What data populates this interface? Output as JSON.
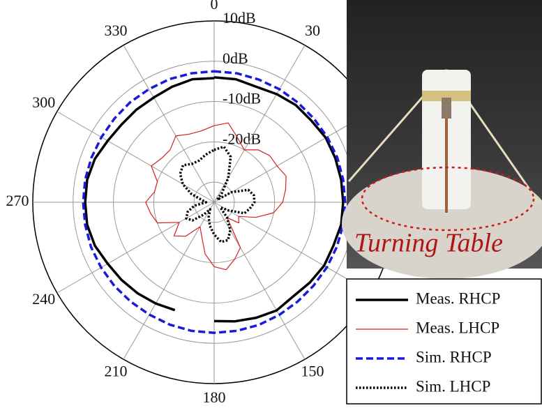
{
  "chart_data": {
    "type": "polar",
    "theta": [
      0,
      10,
      20,
      30,
      40,
      50,
      60,
      70,
      80,
      90,
      100,
      110,
      120,
      130,
      140,
      150,
      160,
      170,
      180,
      190,
      200,
      210,
      220,
      230,
      240,
      250,
      260,
      270,
      280,
      290,
      300,
      310,
      320,
      330,
      340,
      350,
      360
    ],
    "rlim": [
      -35,
      10
    ],
    "rticks": [
      {
        "value": 10,
        "label": "10dB"
      },
      {
        "value": 0,
        "label": "0dB"
      },
      {
        "value": -10,
        "label": "-10dB"
      },
      {
        "value": -20,
        "label": "-20dB"
      },
      {
        "value": -30,
        "label": ""
      }
    ],
    "thetaticks": [
      0,
      30,
      60,
      90,
      120,
      150,
      180,
      210,
      240,
      270,
      300,
      330
    ],
    "thetatick_labels": [
      "0",
      "30",
      null,
      null,
      null,
      "150",
      "180",
      "210",
      "240",
      "270",
      "300",
      "330"
    ],
    "annotation": "Turning Table",
    "series": [
      {
        "name": "Meas. RHCP",
        "color": "#000000",
        "dash": "solid",
        "width": 3.5,
        "values": [
          -4,
          -4,
          -4.5,
          -4,
          -3.5,
          -3.5,
          -3,
          -3,
          -3,
          -3,
          -3,
          -3.5,
          -3.5,
          -4,
          -4.5,
          -4,
          -4.5,
          -5,
          -5.5,
          null,
          -6.5,
          -6,
          -5.5,
          -5,
          -4.5,
          -3.5,
          -3,
          -3,
          -3,
          -3.5,
          -4.5,
          -5,
          -5,
          -5,
          -4.5,
          -4,
          -4.2
        ]
      },
      {
        "name": "Meas. LHCP",
        "color": "#d42020",
        "dash": "solid",
        "width": 1.2,
        "values": [
          -16,
          -15,
          -18,
          -20,
          -18,
          -17,
          -17,
          -16,
          -17,
          -18,
          -20,
          -24,
          -28,
          -27,
          -30,
          -22,
          -20,
          -18,
          -19,
          -22,
          -26,
          -28,
          -24,
          -22,
          -25,
          -20,
          -19,
          -18,
          -20,
          -20,
          -17,
          -18,
          -18,
          -16,
          -17,
          -17,
          -16
        ]
      },
      {
        "name": "Sim. RHCP",
        "color": "#1a1adb",
        "dash": "dashed",
        "width": 3.5,
        "values": [
          -2.5,
          -2.5,
          -2.6,
          -2.6,
          -2.7,
          -2.7,
          -2.6,
          -2.5,
          -2.5,
          -2.5,
          -2.5,
          -2.6,
          -2.7,
          -2.8,
          -2.8,
          -2.7,
          -2.6,
          -2.6,
          -2.6,
          -2.6,
          -2.7,
          -2.8,
          -2.8,
          -2.7,
          -2.6,
          -2.5,
          -2.5,
          -2.5,
          -2.5,
          -2.6,
          -2.7,
          -2.7,
          -2.6,
          -2.6,
          -2.5,
          -2.5,
          -2.5
        ]
      },
      {
        "name": "Sim. LHCP",
        "color": "#000000",
        "dash": "dotted",
        "width": 3.5,
        "values": [
          -22,
          -21,
          -23,
          -28,
          -32,
          -34,
          -30,
          -26,
          -25,
          -25,
          -26,
          -27,
          -31,
          -33,
          -30,
          -27,
          -25,
          -25,
          -27,
          -29,
          -31,
          -33,
          -31,
          -28,
          -27,
          -28,
          -30,
          -33,
          -32,
          -29,
          -26,
          -24,
          -23,
          -24,
          -24,
          -23,
          -22
        ]
      }
    ]
  }
}
